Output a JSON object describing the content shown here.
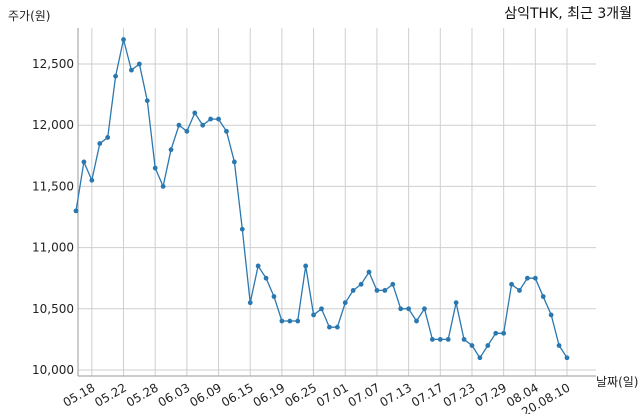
{
  "chart_data": {
    "type": "line",
    "title": "삼익THK, 최근 3개월",
    "ylabel": "주가(원)",
    "xlabel": "날짜(일)",
    "ylim": [
      10000,
      12800
    ],
    "yticks": [
      10000,
      10500,
      11000,
      11500,
      12000,
      12500
    ],
    "ytick_labels": [
      "10,000",
      "10,500",
      "11,000",
      "11,500",
      "12,000",
      "12,500"
    ],
    "xtick_labels": [
      "05.18",
      "05.22",
      "05.28",
      "06.03",
      "06.09",
      "06.15",
      "06.19",
      "06.25",
      "07.01",
      "07.07",
      "07.13",
      "07.17",
      "07.23",
      "07.29",
      "08.04",
      "20.08.10"
    ],
    "xtick_index": [
      2,
      6,
      10,
      14,
      18,
      22,
      26,
      30,
      34,
      38,
      42,
      46,
      50,
      54,
      58,
      62
    ],
    "grid": true,
    "color": "#2a78b0",
    "series": [
      {
        "name": "",
        "values": [
          11300,
          11700,
          11550,
          11850,
          11900,
          12400,
          12700,
          12450,
          12500,
          12200,
          11650,
          11500,
          11800,
          12000,
          11950,
          12100,
          12000,
          12050,
          12050,
          11950,
          11700,
          11150,
          10550,
          10850,
          10750,
          10600,
          10400,
          10400,
          10400,
          10850,
          10450,
          10500,
          10350,
          10350,
          10550,
          10650,
          10700,
          10800,
          10650,
          10650,
          10700,
          10500,
          10500,
          10400,
          10500,
          10250,
          10250,
          10250,
          10550,
          10250,
          10200,
          10100,
          10200,
          10300,
          10300,
          10700,
          10650,
          10750,
          10750,
          10600,
          10450,
          10200,
          10100
        ]
      }
    ]
  }
}
